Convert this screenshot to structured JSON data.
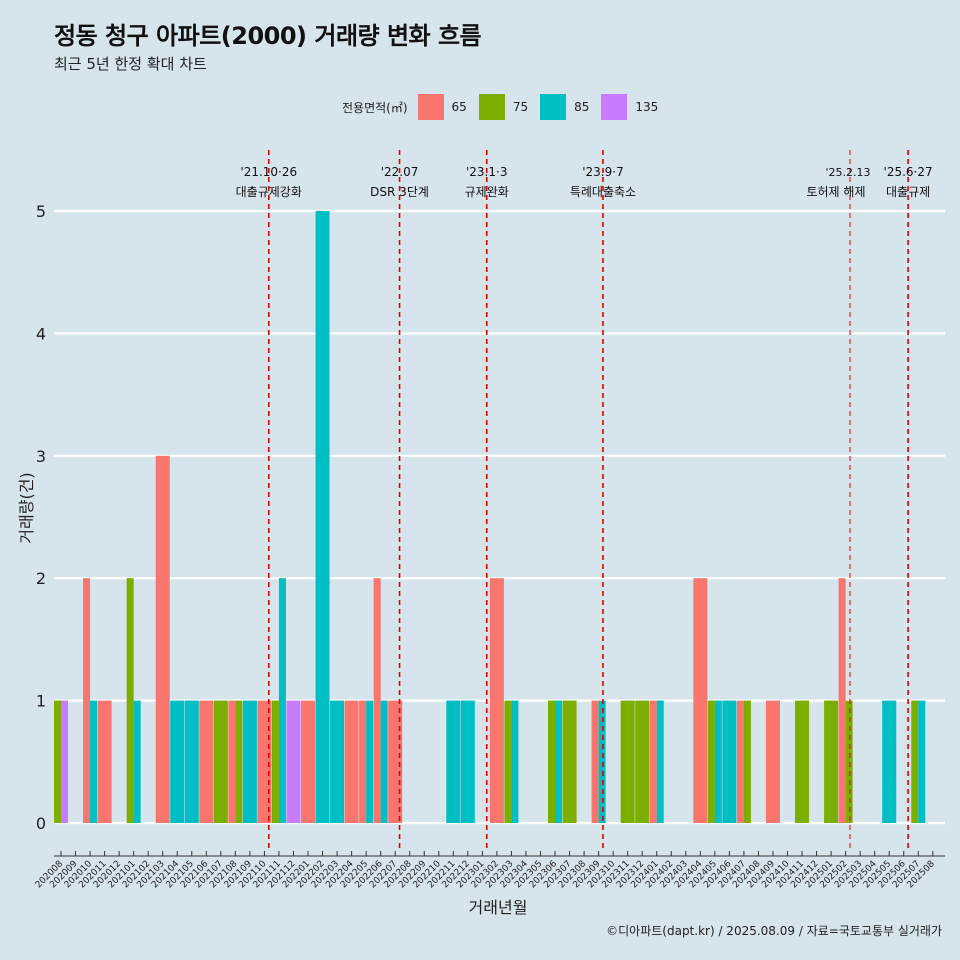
{
  "title": "정동 청구 아파트(2000) 거래량 변화 흐름",
  "subtitle": "최근 5년 한정 확대 차트",
  "caption": "©디아파트(dapt.kr) / 2025.08.09 / 자료=국토교통부 실거래가",
  "legend": {
    "title": "전용면적(㎡)",
    "items": [
      {
        "label": "65",
        "color": "#f8766d"
      },
      {
        "label": "75",
        "color": "#7cae00"
      },
      {
        "label": "85",
        "color": "#00bfc4"
      },
      {
        "label": "135",
        "color": "#c77cff"
      }
    ]
  },
  "chart_data": {
    "type": "bar",
    "xlabel": "거래년월",
    "ylabel": "거래량(건)",
    "ylim": [
      0,
      5
    ],
    "yticks": [
      0,
      1,
      2,
      3,
      4,
      5
    ],
    "grid": true,
    "legend_position": "top",
    "categories": [
      "202008",
      "202009",
      "202010",
      "202011",
      "202012",
      "202101",
      "202102",
      "202103",
      "202104",
      "202105",
      "202106",
      "202107",
      "202108",
      "202109",
      "202110",
      "202111",
      "202112",
      "202201",
      "202202",
      "202203",
      "202204",
      "202205",
      "202206",
      "202207",
      "202208",
      "202209",
      "202210",
      "202211",
      "202212",
      "202301",
      "202302",
      "202303",
      "202304",
      "202305",
      "202306",
      "202307",
      "202308",
      "202309",
      "202310",
      "202311",
      "202312",
      "202401",
      "202402",
      "202403",
      "202404",
      "202405",
      "202406",
      "202407",
      "202408",
      "202409",
      "202410",
      "202411",
      "202412",
      "202501",
      "202502",
      "202503",
      "202504",
      "202505",
      "202506",
      "202507",
      "202508"
    ],
    "series": [
      {
        "name": "65",
        "color": "#f8766d",
        "values": [
          0,
          0,
          2,
          1,
          0,
          0,
          0,
          3,
          0,
          0,
          1,
          0,
          1,
          0,
          1,
          0,
          0,
          1,
          0,
          0,
          1,
          1,
          2,
          1,
          0,
          0,
          0,
          0,
          0,
          0,
          2,
          0,
          0,
          0,
          0,
          0,
          0,
          1,
          0,
          0,
          0,
          1,
          0,
          0,
          2,
          0,
          0,
          1,
          0,
          1,
          0,
          0,
          0,
          0,
          2,
          0,
          0,
          0,
          0,
          0,
          0
        ]
      },
      {
        "name": "75",
        "color": "#7cae00",
        "values": [
          1,
          0,
          0,
          0,
          0,
          2,
          0,
          0,
          0,
          0,
          0,
          1,
          1,
          0,
          0,
          1,
          0,
          0,
          0,
          0,
          0,
          0,
          0,
          0,
          0,
          0,
          0,
          0,
          0,
          0,
          0,
          1,
          0,
          0,
          1,
          1,
          0,
          0,
          0,
          1,
          1,
          0,
          0,
          0,
          0,
          1,
          0,
          1,
          0,
          0,
          0,
          1,
          0,
          1,
          1,
          0,
          0,
          0,
          0,
          1,
          0
        ]
      },
      {
        "name": "85",
        "color": "#00bfc4",
        "values": [
          0,
          0,
          1,
          0,
          0,
          1,
          0,
          0,
          1,
          1,
          0,
          0,
          0,
          1,
          0,
          2,
          0,
          0,
          5,
          1,
          0,
          1,
          1,
          0,
          0,
          0,
          0,
          1,
          1,
          0,
          0,
          1,
          0,
          0,
          1,
          0,
          0,
          1,
          0,
          0,
          0,
          1,
          0,
          0,
          0,
          1,
          1,
          0,
          0,
          0,
          0,
          0,
          0,
          0,
          0,
          0,
          0,
          1,
          0,
          1,
          0
        ]
      },
      {
        "name": "135",
        "color": "#c77cff",
        "values": [
          1,
          0,
          0,
          0,
          0,
          0,
          0,
          0,
          0,
          0,
          0,
          0,
          0,
          0,
          0,
          0,
          1,
          0,
          0,
          0,
          0,
          0,
          0,
          0,
          0,
          0,
          0,
          0,
          0,
          0,
          0,
          0,
          0,
          0,
          0,
          0,
          0,
          0,
          0,
          0,
          0,
          0,
          0,
          0,
          0,
          0,
          0,
          0,
          0,
          0,
          0,
          0,
          0,
          0,
          0,
          0,
          0,
          0,
          0,
          0,
          0
        ]
      }
    ],
    "annotations": [
      {
        "date": "'21.10·26",
        "label": "대출규제강화",
        "x_index": 14.3
      },
      {
        "date": "'22.07",
        "label": "DSR 3단계",
        "x_index": 23.3
      },
      {
        "date": "'23.1·3",
        "label": "규제완화",
        "x_index": 29.3
      },
      {
        "date": "'23.9·7",
        "label": "특례대출축소",
        "x_index": 37.3
      },
      {
        "date": "'25.2.13",
        "label": "토허제 해제",
        "x_index": 54.3
      },
      {
        "date": "'25.6·27",
        "label": "대출규제",
        "x_index": 58.3
      }
    ]
  }
}
